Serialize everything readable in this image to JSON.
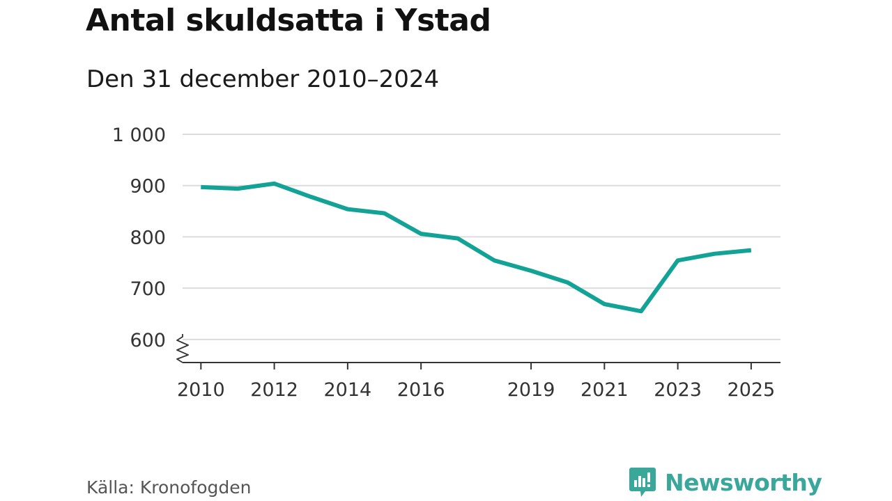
{
  "header": {
    "title": "Antal skuldsatta i Ystad",
    "subtitle": "Den 31 december 2010–2024"
  },
  "footer": {
    "source": "Källa: Kronofogden",
    "brand_name": "Newsworthy"
  },
  "colors": {
    "line": "#13a396",
    "grid": "#dcdcdc",
    "axis": "#333333",
    "brand": "#3aa79b"
  },
  "chart_data": {
    "type": "line",
    "title": "Antal skuldsatta i Ystad",
    "subtitle": "Den 31 december 2010–2024",
    "xlabel": "",
    "ylabel": "",
    "xlim": [
      2009.5,
      2025.8
    ],
    "ylim": [
      555,
      1000
    ],
    "axis_break": true,
    "grid": true,
    "x_ticks": [
      {
        "value": 2010,
        "label": "2010"
      },
      {
        "value": 2012,
        "label": "2012"
      },
      {
        "value": 2014,
        "label": "2014"
      },
      {
        "value": 2016,
        "label": "2016"
      },
      {
        "value": 2019,
        "label": "2019"
      },
      {
        "value": 2021,
        "label": "2021"
      },
      {
        "value": 2023,
        "label": "2023"
      },
      {
        "value": 2025,
        "label": "2025"
      }
    ],
    "y_ticks": [
      {
        "value": 600,
        "label": "600"
      },
      {
        "value": 700,
        "label": "700"
      },
      {
        "value": 800,
        "label": "800"
      },
      {
        "value": 900,
        "label": "900"
      },
      {
        "value": 1000,
        "label": "1 000"
      }
    ],
    "series": [
      {
        "name": "Antal skuldsatta",
        "x": [
          2010,
          2011,
          2012,
          2013,
          2014,
          2015,
          2016,
          2017,
          2018,
          2019,
          2020,
          2021,
          2022,
          2023,
          2024,
          2025
        ],
        "values": [
          897,
          894,
          904,
          878,
          854,
          846,
          806,
          797,
          754,
          734,
          711,
          669,
          655,
          754,
          767,
          774
        ]
      }
    ]
  }
}
